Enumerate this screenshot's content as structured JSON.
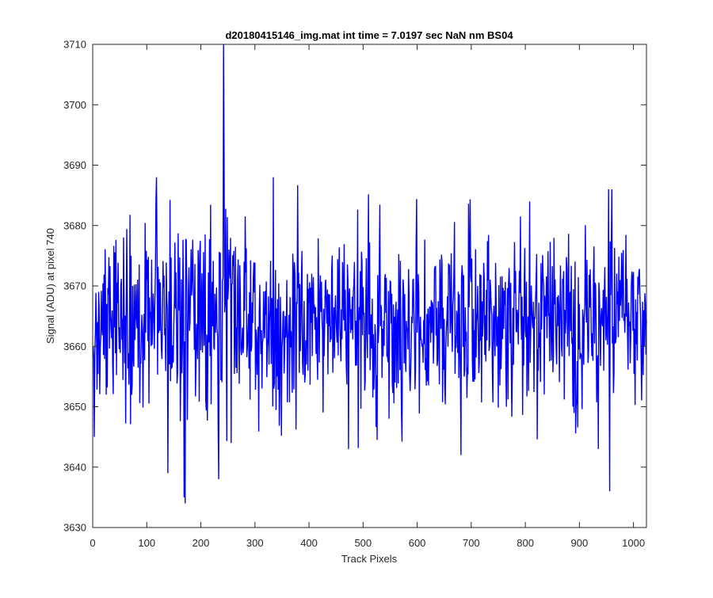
{
  "chart_data": {
    "type": "line",
    "title": "d20180415146_img.mat int time = 7.0197 sec  NaN nm BS04",
    "xlabel": "Track Pixels",
    "ylabel": "Signal (ADU) at pixel 740",
    "xlim": [
      0,
      1024
    ],
    "ylim": [
      3630,
      3710
    ],
    "xticks": [
      0,
      100,
      200,
      300,
      400,
      500,
      600,
      700,
      800,
      900,
      1000
    ],
    "yticks": [
      3630,
      3640,
      3650,
      3660,
      3670,
      3680,
      3690,
      3700,
      3710
    ],
    "grid": false,
    "series": [
      {
        "color": "#0000ff",
        "noise": {
          "mean": 3664.5,
          "std": 7.5,
          "count": 1024,
          "seed": 20180415
        },
        "notable_points": [
          {
            "x": 2,
            "y": 3645
          },
          {
            "x": 117,
            "y": 3688
          },
          {
            "x": 138,
            "y": 3639
          },
          {
            "x": 168,
            "y": 3635
          },
          {
            "x": 170,
            "y": 3634
          },
          {
            "x": 232,
            "y": 3638
          },
          {
            "x": 241,
            "y": 3710
          },
          {
            "x": 242,
            "y": 3691
          },
          {
            "x": 255,
            "y": 3644
          },
          {
            "x": 333,
            "y": 3688
          },
          {
            "x": 472,
            "y": 3643
          },
          {
            "x": 680,
            "y": 3642
          },
          {
            "x": 934,
            "y": 3643
          },
          {
            "x": 953,
            "y": 3686
          },
          {
            "x": 955,
            "y": 3636
          },
          {
            "x": 959,
            "y": 3686
          }
        ]
      }
    ]
  }
}
